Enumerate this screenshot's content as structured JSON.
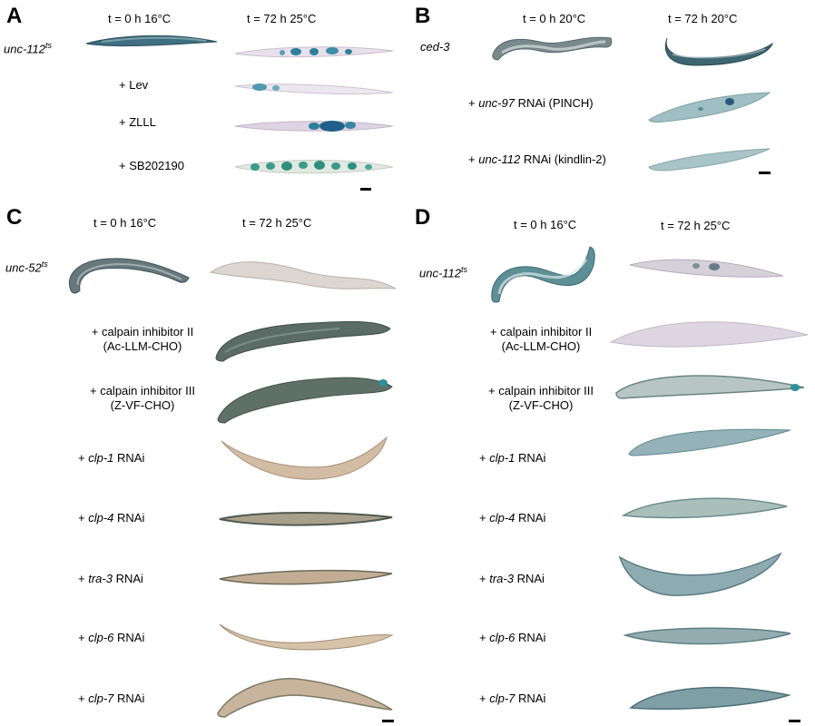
{
  "panels": {
    "A": {
      "letter": "A",
      "col_left": "t = 0 h 16°C",
      "col_right": "t = 72 h 25°C",
      "strain_main": "unc-112",
      "strain_sup": "ts",
      "rows": [
        {
          "prefix": "+ ",
          "italic": "",
          "suffix": "Lev"
        },
        {
          "prefix": "+ ",
          "italic": "",
          "suffix": "ZLLL"
        },
        {
          "prefix": "+ ",
          "italic": "",
          "suffix": "SB202190"
        }
      ]
    },
    "B": {
      "letter": "B",
      "col_left": "t = 0 h 20°C",
      "col_right": "t = 72 h 20°C",
      "strain_main": "ced-3",
      "rows": [
        {
          "prefix": "+ ",
          "italic": "unc-97",
          "suffix": " RNAi (PINCH)"
        },
        {
          "prefix": "+ ",
          "italic": "unc-112",
          "suffix": " RNAi (kindlin-2)"
        }
      ]
    },
    "C": {
      "letter": "C",
      "col_left": "t = 0 h 16°C",
      "col_right": "t = 72 h  25°C",
      "strain_main": "unc-52",
      "strain_sup": "ts",
      "rows": [
        {
          "line1": "+ calpain inhibitor II",
          "line2": "(Ac-LLM-CHO)"
        },
        {
          "line1": "+ calpain inhibitor III",
          "line2": "(Z-VF-CHO)"
        },
        {
          "prefix": "+ ",
          "italic": "clp-1",
          "suffix": " RNAi"
        },
        {
          "prefix": "+ ",
          "italic": "clp-4",
          "suffix": " RNAi"
        },
        {
          "prefix": "+ ",
          "italic": "tra-3",
          "suffix": " RNAi"
        },
        {
          "prefix": "+ ",
          "italic": "clp-6",
          "suffix": " RNAi"
        },
        {
          "prefix": "+ ",
          "italic": "clp-7",
          "suffix": " RNAi"
        }
      ]
    },
    "D": {
      "letter": "D",
      "col_left": "t = 0 h 16°C",
      "col_right": "t = 72 h  25°C",
      "strain_main": "unc-112",
      "strain_sup": "ts",
      "rows": [
        {
          "line1": "+ calpain inhibitor II",
          "line2": "(Ac-LLM-CHO)"
        },
        {
          "line1": "+ calpain inhibitor III",
          "line2": "(Z-VF-CHO)"
        },
        {
          "prefix": "+ ",
          "italic": "clp-1",
          "suffix": " RNAi"
        },
        {
          "prefix": "+ ",
          "italic": "clp-4",
          "suffix": " RNAi"
        },
        {
          "prefix": "+ ",
          "italic": "tra-3",
          "suffix": " RNAi"
        },
        {
          "prefix": "+ ",
          "italic": "clp-6",
          "suffix": " RNAi"
        },
        {
          "prefix": "+ ",
          "italic": "clp-7",
          "suffix": " RNAi"
        }
      ]
    }
  },
  "colors": {
    "dark_blue_worm": "#3f6f80",
    "light_worm": "#d8d0c6",
    "tan_worm": "#d9c4ad",
    "lacz_blue": "#2f7f9a",
    "purple_worm": "#d7cfe0"
  }
}
